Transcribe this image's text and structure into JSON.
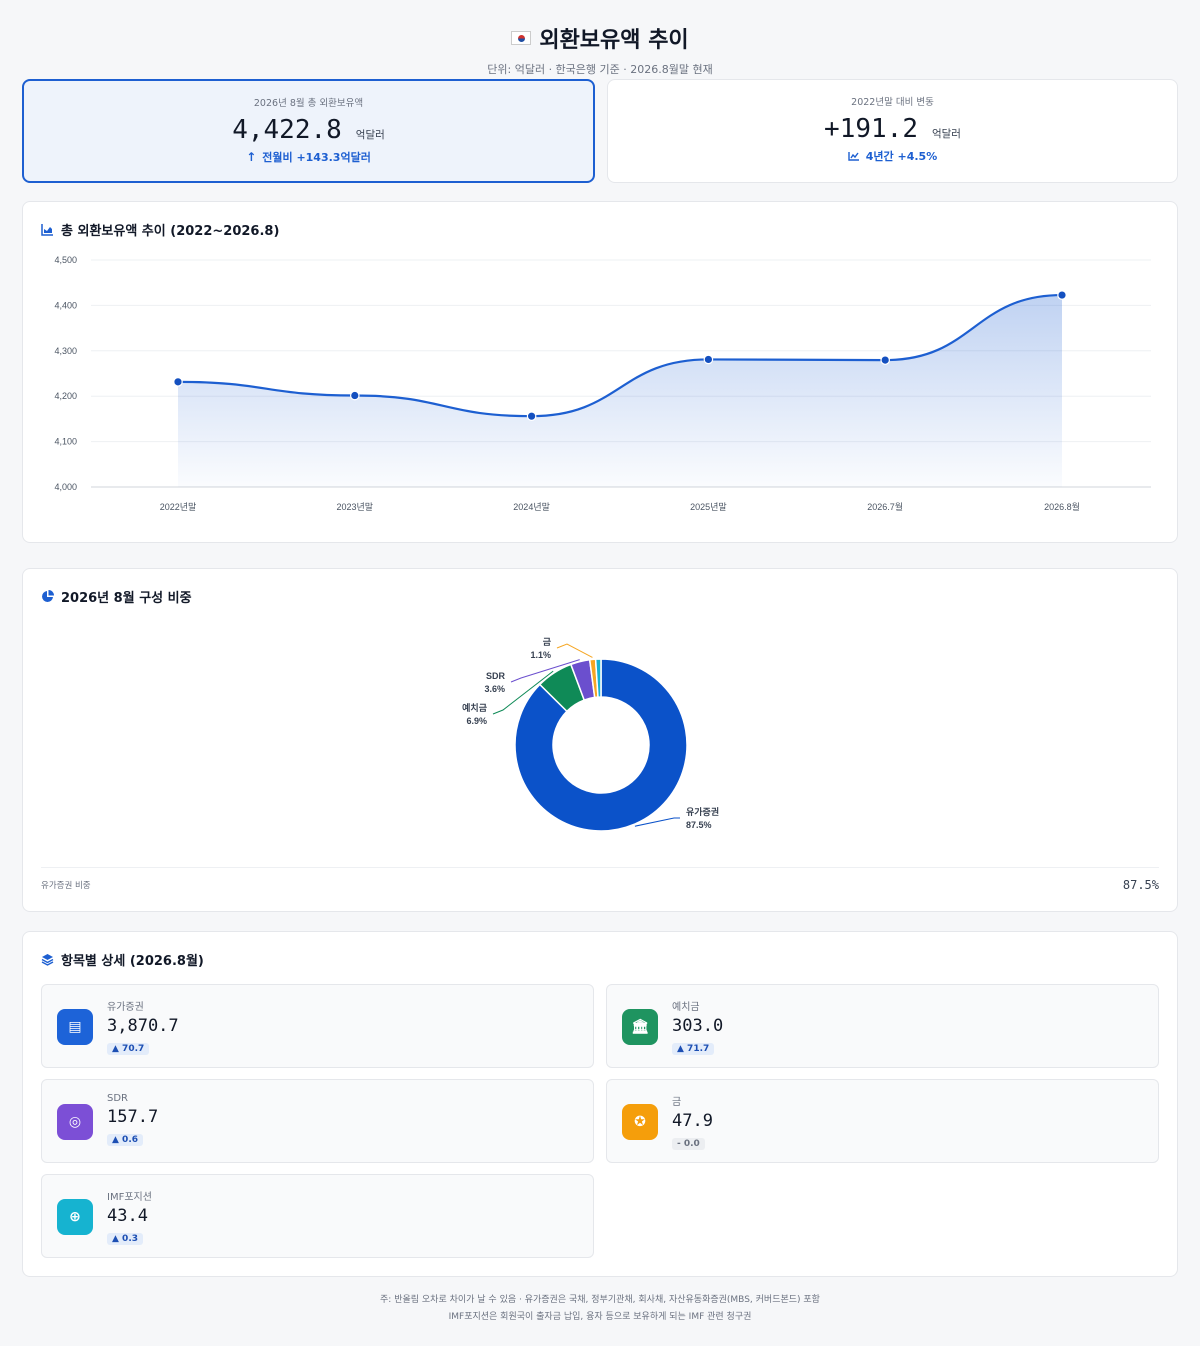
{
  "header": {
    "title": "외환보유액 추이",
    "subtitle": "단위: 억달러 · 한국은행 기준 · 2026.8월말 현재"
  },
  "kpis": [
    {
      "label": "2026년 8월 총 외환보유액",
      "value": "4,422.8",
      "unit": "억달러",
      "delta": "전월비 +143.3억달러",
      "delta_icon": "arrow-up-icon"
    },
    {
      "label": "2022년말 대비 변동",
      "value": "+191.2",
      "unit": "억달러",
      "delta": "4년간 +4.5%",
      "delta_icon": "trend-icon"
    }
  ],
  "trend": {
    "title": "총 외환보유액 추이 (2022~2026.8)",
    "icon": "area-chart-icon"
  },
  "composition": {
    "title": "2026년 8월 구성 비중",
    "icon": "pie-chart-icon",
    "footer_label": "유가증권 비중",
    "footer_value": "87.5%"
  },
  "details": {
    "title": "항목별 상세 (2026.8월)",
    "icon": "layers-icon",
    "items": [
      {
        "label": "유가증권",
        "value": "3,870.7",
        "change": "▲ 70.7",
        "trend": "up",
        "icon": "document-icon",
        "color": "#1d63d8"
      },
      {
        "label": "예치금",
        "value": "303.0",
        "change": "▲ 71.7",
        "trend": "up",
        "icon": "bank-icon",
        "color": "#1f9460"
      },
      {
        "label": "SDR",
        "value": "157.7",
        "change": "▲ 0.6",
        "trend": "up",
        "icon": "coins-icon",
        "color": "#7c4fd6"
      },
      {
        "label": "금",
        "value": "47.9",
        "change": "- 0.0",
        "trend": "flat",
        "icon": "medal-icon",
        "color": "#f59e0b"
      },
      {
        "label": "IMF포지션",
        "value": "43.4",
        "change": "▲ 0.3",
        "trend": "up",
        "icon": "globe-icon",
        "color": "#16b3d0"
      }
    ]
  },
  "footnote": [
    "주: 반올림 오차로 차이가 날 수 있음 · 유가증권은 국채, 정부기관채, 회사채, 자산유동화증권(MBS, 커버드본드) 포함",
    "IMF포지션은 회원국이 출자금 납입, 융자 등으로 보유하게 되는 IMF 관련 청구권"
  ],
  "chart_data": [
    {
      "type": "area",
      "title": "총 외환보유액 추이 (2022~2026.8)",
      "categories": [
        "2022년말",
        "2023년말",
        "2024년말",
        "2025년말",
        "2026.7월",
        "2026.8월"
      ],
      "values": [
        4231.6,
        4201.5,
        4156.0,
        4281.0,
        4279.5,
        4422.8
      ],
      "ylim": [
        4000,
        4500
      ],
      "yticks": [
        4000,
        4100,
        4200,
        4300,
        4400,
        4500
      ],
      "ytick_labels": [
        "4,000",
        "4,100",
        "4,200",
        "4,300",
        "4,400",
        "4,500"
      ],
      "grid": true,
      "color": "#1d5fd1"
    },
    {
      "type": "pie",
      "title": "2026년 8월 구성 비중",
      "labels": [
        "유가증권",
        "예치금",
        "SDR",
        "금",
        "IMF포지션"
      ],
      "values": [
        87.5,
        6.9,
        3.6,
        1.1,
        1.0
      ],
      "label_texts": [
        "87.5%",
        "6.9%",
        "3.6%",
        "1.1%",
        ""
      ],
      "colors": [
        "#0b52c9",
        "#0f8a57",
        "#6b4fce",
        "#f5a623",
        "#17b2cf"
      ]
    }
  ]
}
